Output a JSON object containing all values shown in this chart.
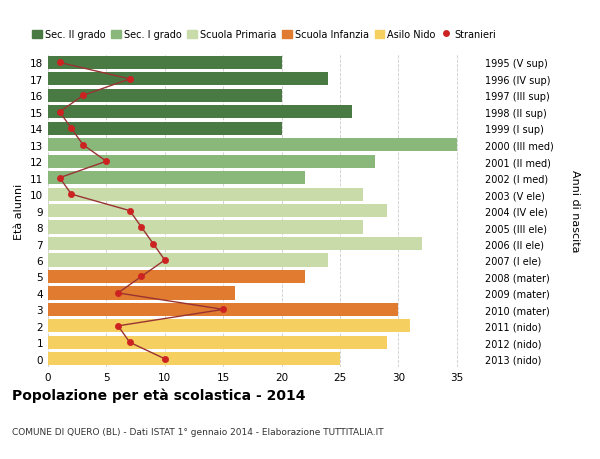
{
  "ages": [
    0,
    1,
    2,
    3,
    4,
    5,
    6,
    7,
    8,
    9,
    10,
    11,
    12,
    13,
    14,
    15,
    16,
    17,
    18
  ],
  "right_labels": [
    "2013 (nido)",
    "2012 (nido)",
    "2011 (nido)",
    "2010 (mater)",
    "2009 (mater)",
    "2008 (mater)",
    "2007 (I ele)",
    "2006 (II ele)",
    "2005 (III ele)",
    "2004 (IV ele)",
    "2003 (V ele)",
    "2002 (I med)",
    "2001 (II med)",
    "2000 (III med)",
    "1999 (I sup)",
    "1998 (II sup)",
    "1997 (III sup)",
    "1996 (IV sup)",
    "1995 (V sup)"
  ],
  "bar_values": [
    25,
    29,
    31,
    30,
    16,
    22,
    24,
    32,
    27,
    29,
    27,
    22,
    28,
    35,
    20,
    26,
    20,
    24,
    20
  ],
  "bar_colors": [
    "#f5d060",
    "#f5d060",
    "#f5d060",
    "#e07b30",
    "#e07b30",
    "#e07b30",
    "#c8dba8",
    "#c8dba8",
    "#c8dba8",
    "#c8dba8",
    "#c8dba8",
    "#8ab87a",
    "#8ab87a",
    "#8ab87a",
    "#4a7a44",
    "#4a7a44",
    "#4a7a44",
    "#4a7a44",
    "#4a7a44"
  ],
  "stranieri_values": [
    10,
    7,
    6,
    15,
    6,
    8,
    10,
    9,
    8,
    7,
    2,
    1,
    5,
    3,
    2,
    1,
    3,
    7,
    1
  ],
  "title": "Popolazione per età scolastica - 2014",
  "subtitle": "COMUNE DI QUERO (BL) - Dati ISTAT 1° gennaio 2014 - Elaborazione TUTTITALIA.IT",
  "ylabel_left": "Età alunni",
  "ylabel_right": "Anni di nascita",
  "xlim": [
    0,
    37
  ],
  "xticks": [
    0,
    5,
    10,
    15,
    20,
    25,
    30,
    35
  ],
  "legend_labels": [
    "Sec. II grado",
    "Sec. I grado",
    "Scuola Primaria",
    "Scuola Infanzia",
    "Asilo Nido",
    "Stranieri"
  ],
  "legend_colors": [
    "#4a7a44",
    "#8ab87a",
    "#c8dba8",
    "#e07b30",
    "#f5d060",
    "#aa2222"
  ],
  "bg_color": "#ffffff",
  "bar_height": 0.8,
  "grid_color": "#cccccc",
  "stranieri_line_color": "#993333",
  "stranieri_dot_color": "#cc2222"
}
